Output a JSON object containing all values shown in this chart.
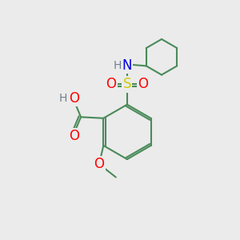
{
  "background_color": "#ebebeb",
  "bond_color": "#4a8a5a",
  "bond_width": 1.5,
  "atom_colors": {
    "O": "#ff0000",
    "N": "#0000dd",
    "S": "#cccc00",
    "H": "#708090"
  },
  "figsize": [
    3.0,
    3.0
  ],
  "dpi": 100
}
